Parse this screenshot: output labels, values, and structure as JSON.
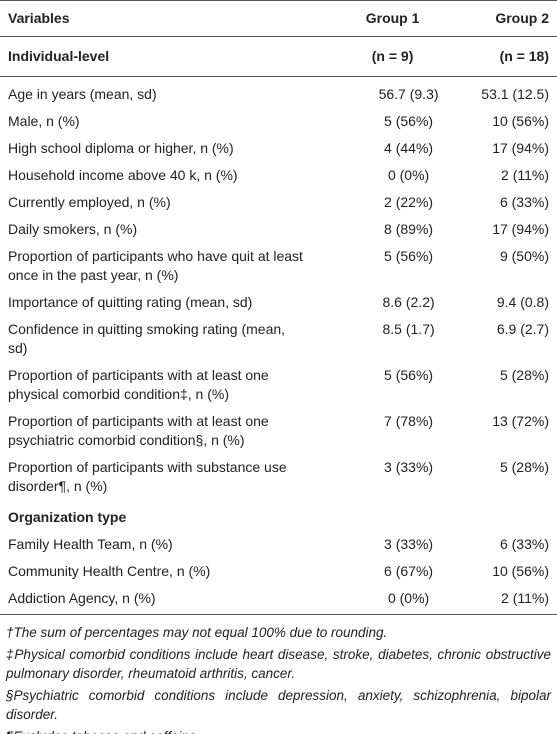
{
  "table": {
    "header": [
      "Variables",
      "Group 1",
      "Group 2"
    ],
    "sections": [
      {
        "title": "Individual-level",
        "counts": [
          "(n = 9)",
          "(n = 18)"
        ],
        "rows": [
          [
            "Age in years (mean, sd)",
            "56.7 (9.3)",
            "53.1 (12.5)"
          ],
          [
            "Male, n (%)",
            "5 (56%)",
            "10 (56%)"
          ],
          [
            "High school diploma or higher, n (%)",
            "4 (44%)",
            "17 (94%)"
          ],
          [
            "Household income above 40 k, n (%)",
            "0 (0%)",
            "2 (11%)"
          ],
          [
            "Currently employed, n (%)",
            "2 (22%)",
            "6 (33%)"
          ],
          [
            "Daily smokers, n (%)",
            "8 (89%)",
            "17 (94%)"
          ],
          [
            "Proportion of participants who have quit at least once in the past year, n (%)",
            "5 (56%)",
            "9 (50%)"
          ],
          [
            "Importance of quitting rating (mean, sd)",
            "8.6 (2.2)",
            "9.4 (0.8)"
          ],
          [
            "Confidence in quitting smoking rating (mean, sd)",
            "8.5 (1.7)",
            "6.9 (2.7)"
          ],
          [
            "Proportion of participants with at least one physical comorbid condition‡, n (%)",
            "5 (56%)",
            "5 (28%)"
          ],
          [
            "Proportion of participants with at least one psychiatric comorbid condition§, n (%)",
            "7 (78%)",
            "13 (72%)"
          ],
          [
            "Proportion of participants with substance use disorder¶, n (%)",
            "3 (33%)",
            "5 (28%)"
          ]
        ]
      },
      {
        "title": "Organization type",
        "rows": [
          [
            "Family Health Team, n (%)",
            "3 (33%)",
            "6 (33%)"
          ],
          [
            "Community Health Centre, n (%)",
            "6 (67%)",
            "10 (56%)"
          ],
          [
            "Addiction Agency, n (%)",
            "0 (0%)",
            "2 (11%)"
          ]
        ]
      }
    ]
  },
  "footnotes": [
    "†The sum of percentages may not equal 100% due to rounding.",
    "‡Physical comorbid conditions include heart disease, stroke, diabetes, chronic obstructive pulmonary disorder, rheumatoid arthritis, cancer.",
    "§Psychiatric comorbid conditions include depression, anxiety, schizophrenia, bipolar disorder.",
    "¶Excludes tobacco and caffeine."
  ]
}
